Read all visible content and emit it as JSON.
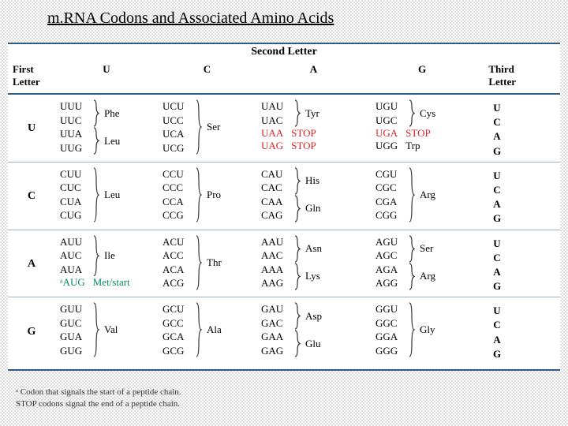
{
  "title": "m.RNA Codons and Associated Amino Acids",
  "headers": {
    "second": "Second Letter",
    "first": "First\nLetter",
    "third": "Third\nLetter",
    "cols": [
      "U",
      "C",
      "A",
      "G"
    ]
  },
  "thirdLetters": [
    "U",
    "C",
    "A",
    "G"
  ],
  "rows": [
    {
      "first": "U",
      "cells": [
        {
          "groups": [
            {
              "codons": [
                "UUU",
                "UUC"
              ],
              "brace": true,
              "aa": "Phe"
            },
            {
              "codons": [
                "UUA",
                "UUG"
              ],
              "brace": true,
              "aa": "Leu"
            }
          ]
        },
        {
          "groups": [
            {
              "codons": [
                "UCU",
                "UCC",
                "UCA",
                "UCG"
              ],
              "brace": true,
              "aa": "Ser"
            }
          ]
        },
        {
          "groups": [
            {
              "codons": [
                "UAU",
                "UAC"
              ],
              "brace": true,
              "aa": "Tyr"
            },
            {
              "codons": [],
              "inline": [
                {
                  "codon": "UAA",
                  "aa": "STOP",
                  "stop": true
                },
                {
                  "codon": "UAG",
                  "aa": "STOP",
                  "stop": true
                }
              ]
            }
          ]
        },
        {
          "groups": [
            {
              "codons": [
                "UGU",
                "UGC"
              ],
              "brace": true,
              "aa": "Cys"
            },
            {
              "codons": [],
              "inline": [
                {
                  "codon": "UGA",
                  "aa": "STOP",
                  "stop": true
                },
                {
                  "codon": "UGG",
                  "aa": "Trp"
                }
              ]
            }
          ]
        }
      ]
    },
    {
      "first": "C",
      "cells": [
        {
          "groups": [
            {
              "codons": [
                "CUU",
                "CUC",
                "CUA",
                "CUG"
              ],
              "brace": true,
              "aa": "Leu"
            }
          ]
        },
        {
          "groups": [
            {
              "codons": [
                "CCU",
                "CCC",
                "CCA",
                "CCG"
              ],
              "brace": true,
              "aa": "Pro"
            }
          ]
        },
        {
          "groups": [
            {
              "codons": [
                "CAU",
                "CAC"
              ],
              "brace": true,
              "aa": "His"
            },
            {
              "codons": [
                "CAA",
                "CAG"
              ],
              "brace": true,
              "aa": "Gln"
            }
          ]
        },
        {
          "groups": [
            {
              "codons": [
                "CGU",
                "CGC",
                "CGA",
                "CGG"
              ],
              "brace": true,
              "aa": "Arg"
            }
          ]
        }
      ]
    },
    {
      "first": "A",
      "cells": [
        {
          "groups": [
            {
              "codons": [
                "AUU",
                "AUC",
                "AUA"
              ],
              "brace": true,
              "aa": "Ile"
            },
            {
              "codons": [],
              "inline": [
                {
                  "codon": "ᵃAUG",
                  "aa": "Met/start",
                  "green": true
                }
              ]
            }
          ]
        },
        {
          "groups": [
            {
              "codons": [
                "ACU",
                "ACC",
                "ACA",
                "ACG"
              ],
              "brace": true,
              "aa": "Thr"
            }
          ]
        },
        {
          "groups": [
            {
              "codons": [
                "AAU",
                "AAC"
              ],
              "brace": true,
              "aa": "Asn"
            },
            {
              "codons": [
                "AAA",
                "AAG"
              ],
              "brace": true,
              "aa": "Lys"
            }
          ]
        },
        {
          "groups": [
            {
              "codons": [
                "AGU",
                "AGC"
              ],
              "brace": true,
              "aa": "Ser"
            },
            {
              "codons": [
                "AGA",
                "AGG"
              ],
              "brace": true,
              "aa": "Arg"
            }
          ]
        }
      ]
    },
    {
      "first": "G",
      "cells": [
        {
          "groups": [
            {
              "codons": [
                "GUU",
                "GUC",
                "GUA",
                "GUG"
              ],
              "brace": true,
              "aa": "Val"
            }
          ]
        },
        {
          "groups": [
            {
              "codons": [
                "GCU",
                "GCC",
                "GCA",
                "GCG"
              ],
              "brace": true,
              "aa": "Ala"
            }
          ]
        },
        {
          "groups": [
            {
              "codons": [
                "GAU",
                "GAC"
              ],
              "brace": true,
              "aa": "Asp"
            },
            {
              "codons": [
                "GAA",
                "GAG"
              ],
              "brace": true,
              "aa": "Glu"
            }
          ]
        },
        {
          "groups": [
            {
              "codons": [
                "GGU",
                "GGC",
                "GGA",
                "GGG"
              ],
              "brace": true,
              "aa": "Gly"
            }
          ]
        }
      ]
    }
  ],
  "footnotes": [
    "ᵃ Codon that signals the start of a peptide chain.",
    "STOP codons signal the end of a peptide chain."
  ],
  "style": {
    "braceColor": "#333",
    "stopColor": "#d22",
    "greenColor": "#0a8a60",
    "ruleColor": "#315b8a"
  }
}
